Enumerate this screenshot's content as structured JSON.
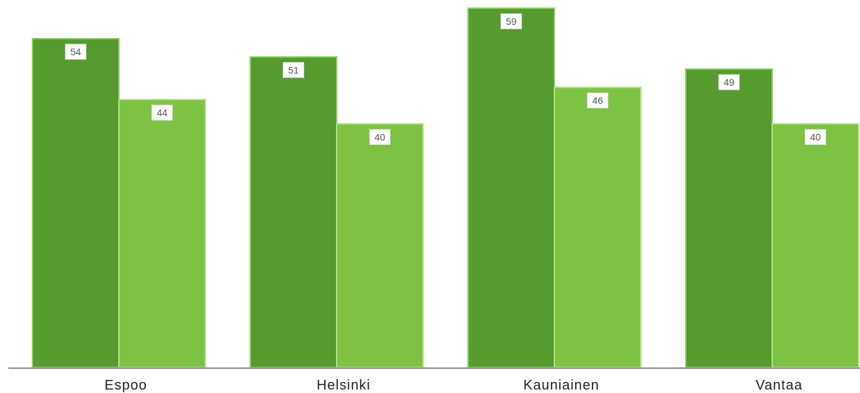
{
  "chart_data": {
    "type": "bar",
    "title": "",
    "xlabel": "",
    "ylabel": "",
    "categories": [
      "Espoo",
      "Helsinki",
      "Kauniainen",
      "Vantaa"
    ],
    "series": [
      {
        "values": [
          54,
          51,
          59,
          49
        ]
      },
      {
        "values": [
          44,
          40,
          46,
          40
        ]
      }
    ],
    "ylim": [
      0,
      60
    ],
    "grid": false,
    "legend": "none",
    "colors": {
      "series": [
        "#559b2e",
        "#7dc242"
      ],
      "series_stroke": [
        "#8fcf6a",
        "#b6e08f"
      ],
      "axis": "#8a8a8a"
    }
  }
}
